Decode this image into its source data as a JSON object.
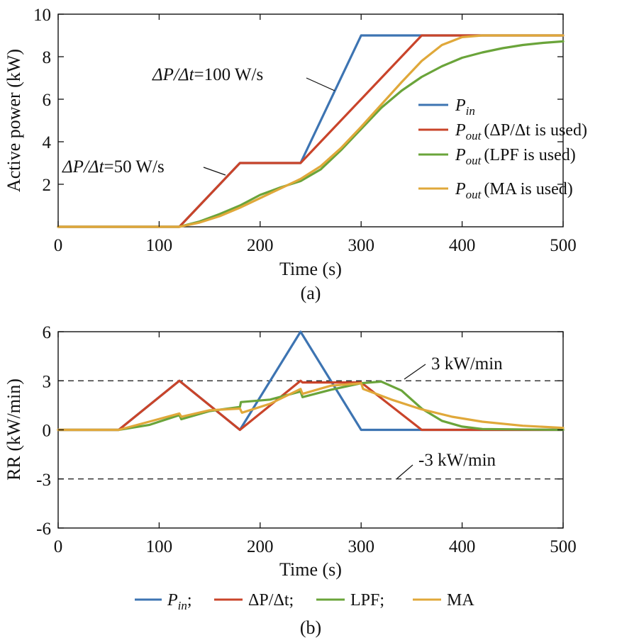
{
  "chart_data": [
    {
      "type": "line",
      "caption": "(a)",
      "xlabel": "Time (s)",
      "ylabel": "Active power (kW)",
      "xlim": [
        0,
        500
      ],
      "ylim": [
        0,
        10
      ],
      "xticks": [
        0,
        100,
        200,
        300,
        400,
        500
      ],
      "yticks": [
        2,
        4,
        6,
        8,
        10
      ],
      "xtick_labels": [
        "0",
        "100",
        "200",
        "300",
        "400",
        "500"
      ],
      "ytick_labels": [
        "2",
        "4",
        "6",
        "8",
        "10"
      ],
      "grid": false,
      "legend_position": "right",
      "annotations": [
        {
          "ratio_symbol": "ΔP/Δt",
          "value": "=100 W/s",
          "x": 330,
          "y": 6.5
        },
        {
          "ratio_symbol": "ΔP/Δt",
          "value": "=50 W/s",
          "x": 165,
          "y": 2.8
        }
      ],
      "series": [
        {
          "symbol": "P",
          "sub": "in",
          "name": "",
          "color": "#3d74b2",
          "x": [
            0,
            120,
            180,
            240,
            300,
            500
          ],
          "y": [
            0,
            0,
            3,
            3,
            9,
            9
          ]
        },
        {
          "symbol": "P",
          "sub": "out",
          "name": "(ΔP/Δt is used)",
          "color": "#c9442a",
          "x": [
            0,
            120,
            180,
            240,
            360,
            500
          ],
          "y": [
            0,
            0,
            3,
            3,
            9,
            9
          ]
        },
        {
          "symbol": "P",
          "sub": "out",
          "name": "(LPF is used)",
          "color": "#6aa43a",
          "x": [
            0,
            120,
            140,
            160,
            180,
            200,
            220,
            240,
            260,
            280,
            300,
            320,
            340,
            360,
            380,
            400,
            420,
            440,
            460,
            480,
            500
          ],
          "y": [
            0,
            0,
            0.25,
            0.6,
            1.0,
            1.5,
            1.85,
            2.15,
            2.7,
            3.6,
            4.6,
            5.6,
            6.4,
            7.05,
            7.55,
            7.95,
            8.2,
            8.4,
            8.55,
            8.65,
            8.72
          ]
        },
        {
          "symbol": "P",
          "sub": "out",
          "name": "(MA is used)",
          "color": "#e0a83a",
          "x": [
            0,
            120,
            140,
            160,
            180,
            200,
            220,
            240,
            260,
            280,
            300,
            320,
            340,
            360,
            380,
            400,
            420,
            500
          ],
          "y": [
            0,
            0,
            0.2,
            0.5,
            0.9,
            1.35,
            1.8,
            2.25,
            2.85,
            3.7,
            4.7,
            5.75,
            6.8,
            7.8,
            8.55,
            8.92,
            9.0,
            9.0
          ]
        }
      ]
    },
    {
      "type": "line",
      "caption": "(b)",
      "xlabel": "Time (s)",
      "ylabel": "RR (kW/min)",
      "xlim": [
        0,
        500
      ],
      "ylim": [
        -6,
        6
      ],
      "xticks": [
        0,
        100,
        200,
        300,
        400,
        500
      ],
      "yticks": [
        -6,
        -3,
        0,
        3,
        6
      ],
      "xtick_labels": [
        "0",
        "100",
        "200",
        "300",
        "400",
        "500"
      ],
      "ytick_labels": [
        "-6",
        "-3",
        "0",
        "3",
        "6"
      ],
      "grid": false,
      "legend_position": "bottom",
      "reference_lines": [
        {
          "y": 3,
          "label": "3 kW/min"
        },
        {
          "y": -3,
          "label": "-3 kW/min"
        }
      ],
      "series": [
        {
          "symbol": "P",
          "sub": "in",
          "name": ";",
          "color": "#3d74b2",
          "x": [
            0,
            60,
            120,
            180,
            240,
            300,
            500
          ],
          "y": [
            0,
            0,
            3,
            0,
            6,
            0,
            0
          ]
        },
        {
          "symbol": "",
          "sub": "",
          "name": "ΔP/Δt;",
          "color": "#c9442a",
          "x": [
            0,
            60,
            120,
            180,
            240,
            242,
            300,
            360,
            500
          ],
          "y": [
            0,
            0,
            3,
            0,
            3,
            2.9,
            2.9,
            0,
            0
          ]
        },
        {
          "symbol": "",
          "sub": "",
          "name": "LPF;",
          "color": "#6aa43a",
          "x": [
            0,
            60,
            90,
            120,
            122,
            150,
            180,
            181,
            210,
            240,
            242,
            270,
            300,
            320,
            340,
            360,
            380,
            400,
            420,
            500
          ],
          "y": [
            0,
            0,
            0.3,
            0.9,
            0.65,
            1.15,
            1.4,
            1.7,
            1.85,
            2.35,
            2.0,
            2.45,
            2.85,
            2.95,
            2.4,
            1.3,
            0.55,
            0.2,
            0.05,
            0
          ]
        },
        {
          "symbol": "",
          "sub": "",
          "name": "MA",
          "color": "#e0a83a",
          "x": [
            0,
            60,
            90,
            120,
            122,
            150,
            180,
            182,
            210,
            240,
            242,
            270,
            300,
            302,
            330,
            360,
            390,
            420,
            460,
            500
          ],
          "y": [
            0,
            0,
            0.5,
            1.0,
            0.8,
            1.2,
            1.3,
            1.05,
            1.6,
            2.5,
            2.2,
            2.7,
            2.85,
            2.5,
            1.85,
            1.25,
            0.8,
            0.5,
            0.25,
            0.12
          ]
        }
      ]
    }
  ]
}
